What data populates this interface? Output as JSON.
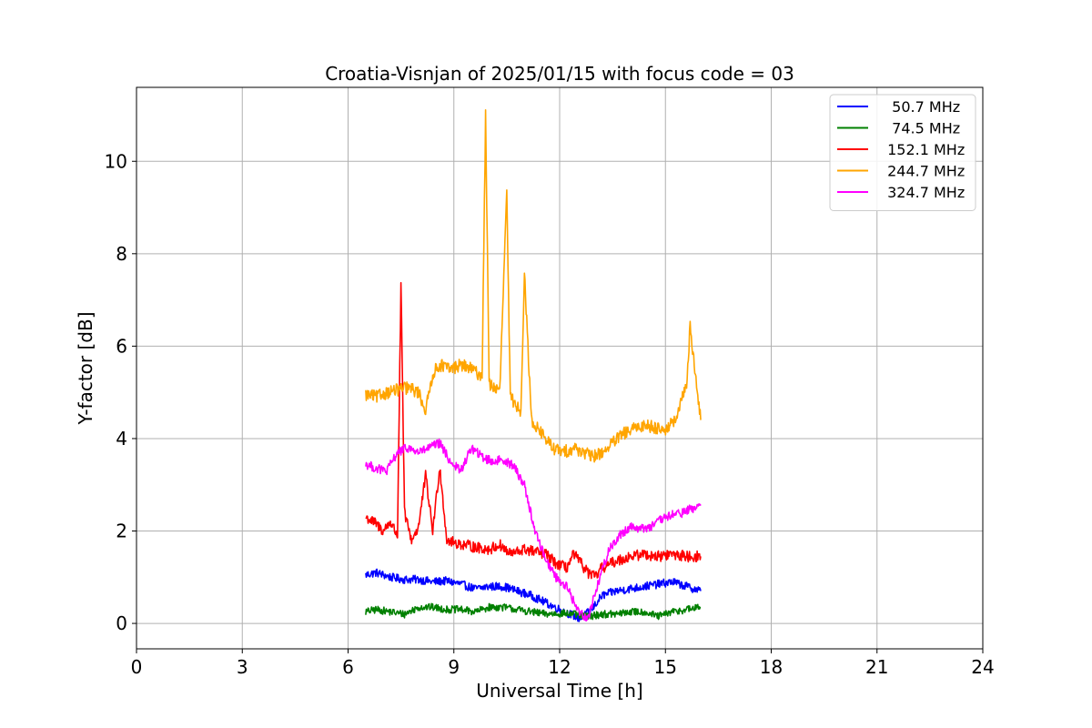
{
  "chart_data": {
    "type": "line",
    "title": "Croatia-Visnjan of 2025/01/15 with focus code = 03",
    "xlabel": "Universal Time [h]",
    "ylabel": "Y-factor [dB]",
    "xlim": [
      0,
      24
    ],
    "ylim": [
      -0.55,
      11.6
    ],
    "xticks": [
      0,
      3,
      6,
      9,
      12,
      15,
      18,
      21,
      24
    ],
    "yticks": [
      0,
      2,
      4,
      6,
      8,
      10
    ],
    "grid": true,
    "legend_position": "top-right",
    "series": [
      {
        "name": "  50.7 MHz",
        "color": "#0000ff",
        "x": [
          6.5,
          6.8,
          7.2,
          7.6,
          8.0,
          8.4,
          8.8,
          9.2,
          9.6,
          10.0,
          10.4,
          10.8,
          11.2,
          11.6,
          12.0,
          12.3,
          12.6,
          12.9,
          13.2,
          13.6,
          14.0,
          14.4,
          14.8,
          15.2,
          15.6,
          16.0
        ],
        "y": [
          1.05,
          1.1,
          1.0,
          0.95,
          0.95,
          0.9,
          0.92,
          0.85,
          0.75,
          0.8,
          0.8,
          0.7,
          0.6,
          0.45,
          0.3,
          0.2,
          0.1,
          0.3,
          0.6,
          0.7,
          0.75,
          0.8,
          0.85,
          0.9,
          0.8,
          0.7
        ]
      },
      {
        "name": "  74.5 MHz",
        "color": "#008000",
        "x": [
          6.5,
          6.8,
          7.2,
          7.6,
          8.0,
          8.4,
          8.8,
          9.2,
          9.6,
          10.0,
          10.4,
          10.8,
          11.2,
          11.6,
          12.0,
          12.4,
          12.8,
          13.2,
          13.6,
          14.0,
          14.4,
          14.8,
          15.2,
          15.6,
          16.0
        ],
        "y": [
          0.25,
          0.3,
          0.25,
          0.2,
          0.35,
          0.35,
          0.3,
          0.3,
          0.25,
          0.35,
          0.35,
          0.3,
          0.25,
          0.2,
          0.22,
          0.2,
          0.15,
          0.2,
          0.2,
          0.25,
          0.25,
          0.15,
          0.25,
          0.3,
          0.35
        ]
      },
      {
        "name": " 152.1 MHz",
        "color": "#ff0000",
        "x": [
          6.5,
          6.8,
          7.0,
          7.2,
          7.4,
          7.5,
          7.6,
          7.8,
          8.0,
          8.2,
          8.4,
          8.6,
          8.8,
          9.0,
          9.3,
          9.6,
          10.0,
          10.3,
          10.6,
          11.0,
          11.3,
          11.6,
          11.9,
          12.2,
          12.4,
          12.6,
          12.8,
          13.0,
          13.2,
          13.6,
          14.0,
          14.4,
          14.8,
          15.2,
          15.6,
          16.0
        ],
        "y": [
          2.3,
          2.15,
          2.0,
          2.2,
          1.9,
          7.3,
          2.4,
          1.8,
          2.1,
          3.2,
          2.0,
          3.4,
          1.8,
          1.75,
          1.7,
          1.65,
          1.6,
          1.7,
          1.5,
          1.6,
          1.55,
          1.5,
          1.3,
          1.2,
          1.5,
          1.3,
          1.1,
          1.0,
          1.2,
          1.35,
          1.45,
          1.5,
          1.45,
          1.5,
          1.45,
          1.45
        ]
      },
      {
        "name": " 244.7 MHz",
        "color": "#ffa500",
        "x": [
          6.5,
          6.8,
          7.1,
          7.4,
          7.7,
          8.0,
          8.2,
          8.4,
          8.6,
          8.9,
          9.2,
          9.5,
          9.8,
          9.9,
          10.0,
          10.3,
          10.5,
          10.6,
          10.9,
          11.0,
          11.2,
          11.5,
          11.8,
          12.1,
          12.4,
          12.7,
          12.9,
          13.2,
          13.5,
          13.8,
          14.1,
          14.4,
          14.7,
          15.0,
          15.3,
          15.6,
          15.7,
          16.0
        ],
        "y": [
          4.95,
          4.9,
          5.0,
          5.05,
          5.1,
          5.0,
          4.6,
          5.4,
          5.6,
          5.5,
          5.6,
          5.5,
          5.35,
          11.0,
          5.2,
          5.0,
          9.3,
          4.9,
          4.6,
          7.6,
          4.4,
          4.1,
          3.8,
          3.7,
          3.8,
          3.7,
          3.6,
          3.7,
          3.9,
          4.1,
          4.2,
          4.3,
          4.25,
          4.2,
          4.4,
          5.2,
          6.4,
          4.4
        ]
      },
      {
        "name": " 324.7 MHz",
        "color": "#ff00ff",
        "x": [
          6.5,
          6.8,
          7.1,
          7.4,
          7.7,
          8.0,
          8.3,
          8.6,
          8.9,
          9.2,
          9.5,
          9.8,
          10.1,
          10.4,
          10.7,
          11.0,
          11.3,
          11.6,
          11.9,
          12.2,
          12.5,
          12.8,
          13.1,
          13.4,
          13.7,
          14.0,
          14.3,
          14.6,
          14.9,
          15.2,
          15.5,
          15.8,
          16.0
        ],
        "y": [
          3.45,
          3.35,
          3.3,
          3.7,
          3.8,
          3.7,
          3.8,
          3.9,
          3.5,
          3.3,
          3.8,
          3.6,
          3.5,
          3.55,
          3.4,
          3.0,
          2.0,
          1.4,
          1.0,
          0.8,
          0.3,
          0.1,
          0.9,
          1.6,
          1.9,
          2.1,
          2.05,
          2.1,
          2.25,
          2.35,
          2.4,
          2.5,
          2.55
        ]
      }
    ]
  }
}
